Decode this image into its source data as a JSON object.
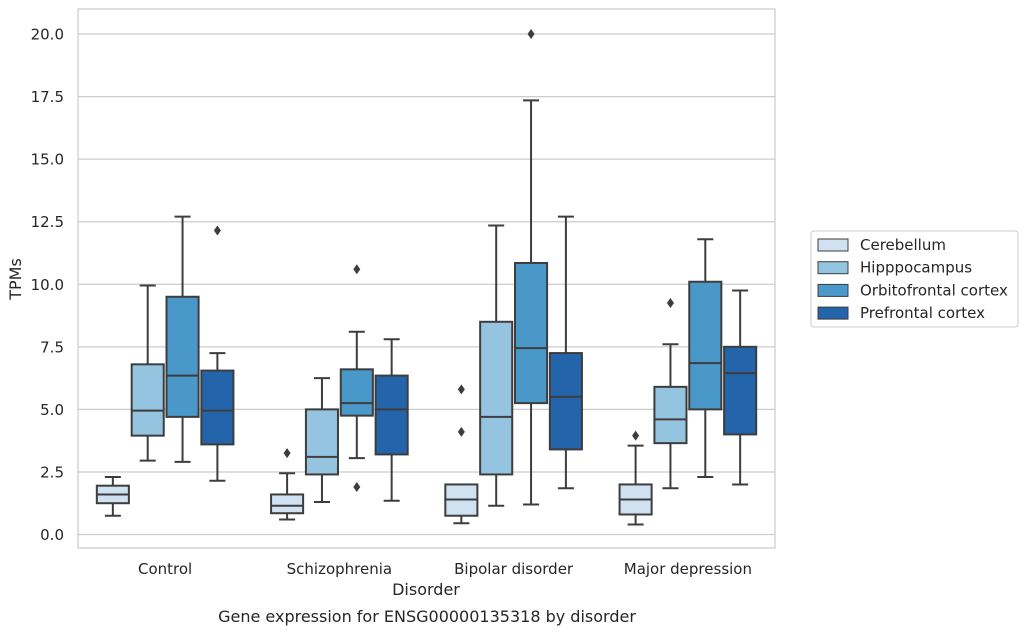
{
  "chart_data": {
    "type": "box",
    "caption": "Gene expression for ENSG00000135318 by disorder",
    "xlabel": "Disorder",
    "ylabel": "TPMs",
    "ylim": [
      -0.5,
      21
    ],
    "yticks": [
      0.0,
      2.5,
      5.0,
      7.5,
      10.0,
      12.5,
      15.0,
      17.5,
      20.0
    ],
    "ytick_labels": [
      "0.0",
      "2.5",
      "5.0",
      "7.5",
      "10.0",
      "12.5",
      "15.0",
      "17.5",
      "20.0"
    ],
    "grid": "horizontal",
    "legend_position": "right",
    "categories": [
      "Control",
      "Schizophrenia",
      "Bipolar disorder",
      "Major depression"
    ],
    "series": [
      {
        "name": "Cerebellum",
        "color": "#d0e1f2",
        "boxes": [
          {
            "whislo": 0.75,
            "q1": 1.25,
            "med": 1.6,
            "q3": 1.95,
            "whishi": 2.3,
            "fliers": []
          },
          {
            "whislo": 0.6,
            "q1": 0.85,
            "med": 1.15,
            "q3": 1.6,
            "whishi": 2.45,
            "fliers": [
              3.25
            ]
          },
          {
            "whislo": 0.45,
            "q1": 0.75,
            "med": 1.4,
            "q3": 2.0,
            "whishi": 2.0,
            "fliers": [
              4.1,
              5.8
            ]
          },
          {
            "whislo": 0.4,
            "q1": 0.8,
            "med": 1.4,
            "q3": 2.0,
            "whishi": 3.55,
            "fliers": [
              3.95
            ]
          }
        ]
      },
      {
        "name": "Hipppocampus",
        "color": "#94c4df",
        "boxes": [
          {
            "whislo": 2.95,
            "q1": 3.95,
            "med": 4.95,
            "q3": 6.8,
            "whishi": 9.95,
            "fliers": []
          },
          {
            "whislo": 1.3,
            "q1": 2.4,
            "med": 3.1,
            "q3": 5.0,
            "whishi": 6.25,
            "fliers": []
          },
          {
            "whislo": 1.15,
            "q1": 2.4,
            "med": 4.7,
            "q3": 8.5,
            "whishi": 12.35,
            "fliers": []
          },
          {
            "whislo": 1.85,
            "q1": 3.65,
            "med": 4.6,
            "q3": 5.9,
            "whishi": 7.6,
            "fliers": [
              9.25
            ]
          }
        ]
      },
      {
        "name": "Orbitofrontal cortex",
        "color": "#4a98c9",
        "boxes": [
          {
            "whislo": 2.9,
            "q1": 4.7,
            "med": 6.35,
            "q3": 9.5,
            "whishi": 12.7,
            "fliers": []
          },
          {
            "whislo": 3.05,
            "q1": 4.75,
            "med": 5.25,
            "q3": 6.6,
            "whishi": 8.1,
            "fliers": [
              1.9,
              10.6
            ]
          },
          {
            "whislo": 1.2,
            "q1": 5.25,
            "med": 7.45,
            "q3": 10.85,
            "whishi": 17.35,
            "fliers": [
              20.0
            ]
          },
          {
            "whislo": 2.3,
            "q1": 5.0,
            "med": 6.85,
            "q3": 10.1,
            "whishi": 11.8,
            "fliers": []
          }
        ]
      },
      {
        "name": "Prefrontal cortex",
        "color": "#2464ab",
        "boxes": [
          {
            "whislo": 2.15,
            "q1": 3.6,
            "med": 4.95,
            "q3": 6.55,
            "whishi": 7.25,
            "fliers": [
              12.15
            ]
          },
          {
            "whislo": 1.35,
            "q1": 3.2,
            "med": 5.0,
            "q3": 6.35,
            "whishi": 7.8,
            "fliers": []
          },
          {
            "whislo": 1.85,
            "q1": 3.4,
            "med": 5.5,
            "q3": 7.25,
            "whishi": 12.7,
            "fliers": []
          },
          {
            "whislo": 2.0,
            "q1": 4.0,
            "med": 6.45,
            "q3": 7.5,
            "whishi": 9.75,
            "fliers": []
          }
        ]
      }
    ]
  }
}
